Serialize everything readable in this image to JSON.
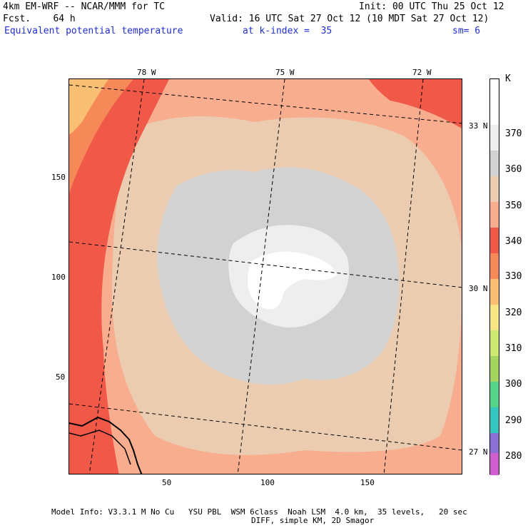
{
  "header": {
    "model_title": "4km EM-WRF -- NCAR/MMM for TC",
    "init": "Init: 00 UTC Thu 25 Oct 12",
    "forecast": "Fcst.    64 h",
    "valid": "Valid: 16 UTC Sat 27 Oct 12 (10 MDT Sat 27 Oct 12)",
    "field": "Equivalent potential temperature",
    "level": "at k-index =  35",
    "smoothing": "sm= 6"
  },
  "colorbar": {
    "unit": "K",
    "labels": [
      "370",
      "360",
      "350",
      "340",
      "330",
      "320",
      "310",
      "300",
      "290",
      "280"
    ],
    "colors": [
      "#ffffff",
      "#eeeeee",
      "#d2d2d2",
      "#ecccb0",
      "#f8ad8f",
      "#f05848",
      "#f58a58",
      "#f9bf73",
      "#f6e784",
      "#cfe870",
      "#a4d55f",
      "#55d58b",
      "#34c7c0",
      "#5c8ce8",
      "#8a70d2",
      "#d060d0"
    ]
  },
  "axes": {
    "lon_labels": [
      "78 W",
      "75 W",
      "72 W"
    ],
    "lat_labels": [
      "33 N",
      "30 N",
      "27 N"
    ],
    "x_ticks": [
      "50",
      "100",
      "150"
    ],
    "y_ticks": [
      "150",
      "100",
      "50"
    ]
  },
  "footer": {
    "line1": "Model Info: V3.3.1 M No Cu   YSU PBL  WSM 6class  Noah LSM  4.0 km,  35 levels,   20 sec",
    "line2": "DIFF, simple KM, 2D Smagor"
  }
}
